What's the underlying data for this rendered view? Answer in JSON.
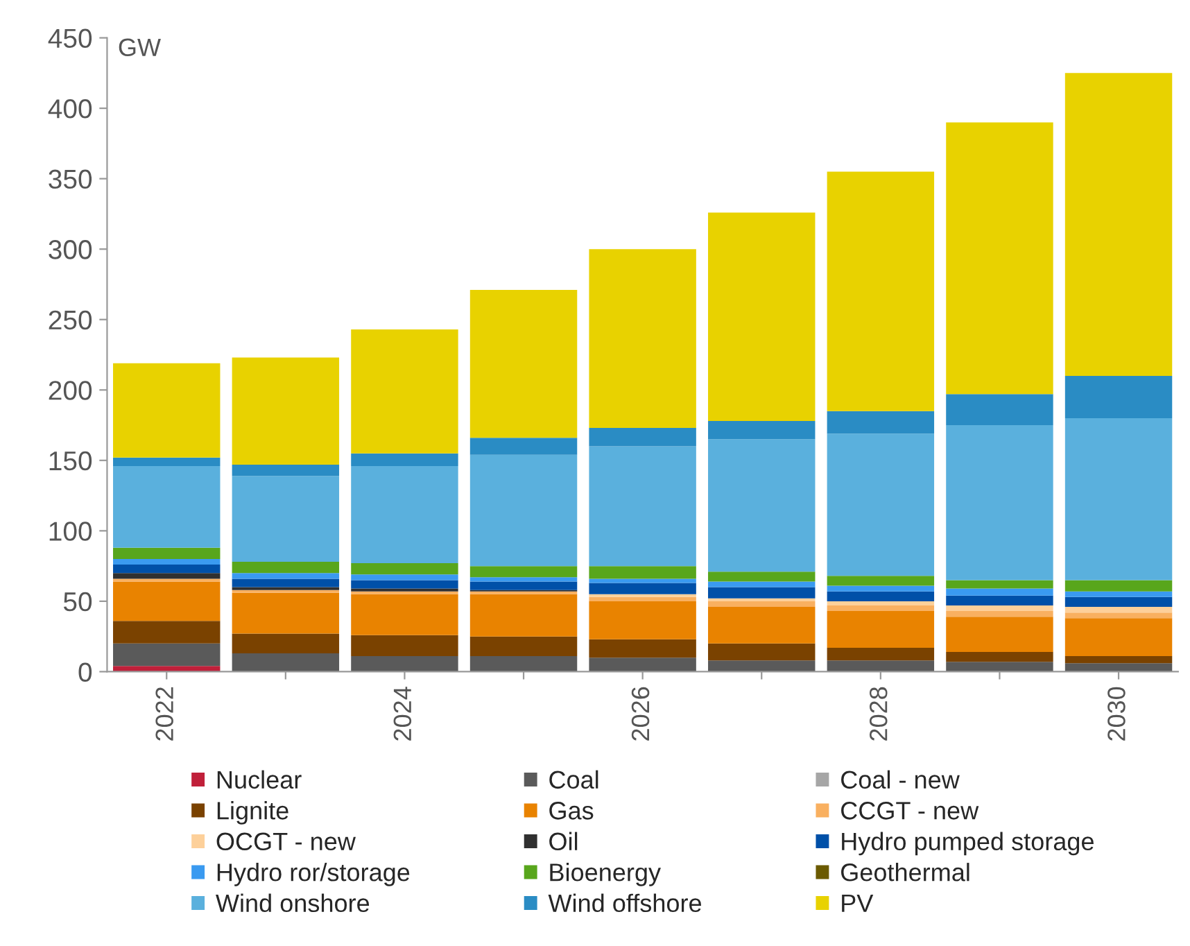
{
  "chart_data": {
    "type": "bar",
    "stacked": true,
    "ylabel": "GW",
    "categories": [
      "2022",
      null,
      "2024",
      null,
      "2026",
      null,
      "2028",
      null,
      "2030"
    ],
    "ylim": [
      0,
      450
    ],
    "yticks": [
      0,
      50,
      100,
      150,
      200,
      250,
      300,
      350,
      400,
      450
    ],
    "grid": false,
    "legend": "bottom",
    "series": [
      {
        "name": "Nuclear",
        "color": "#c0203a",
        "values": [
          4,
          0,
          0,
          0,
          0,
          0,
          0,
          0,
          0
        ]
      },
      {
        "name": "Coal",
        "color": "#5a5a5a",
        "values": [
          16,
          13,
          11,
          11,
          10,
          8,
          8,
          7,
          6
        ]
      },
      {
        "name": "Coal - new",
        "color": "#a6a6a6",
        "values": [
          0,
          0,
          0,
          0,
          0,
          0,
          0,
          0,
          0
        ]
      },
      {
        "name": "Lignite",
        "color": "#7a4200",
        "values": [
          16,
          14,
          15,
          14,
          13,
          12,
          9,
          7,
          5
        ]
      },
      {
        "name": "Gas",
        "color": "#e98300",
        "values": [
          28,
          29,
          29,
          30,
          27,
          26,
          26,
          25,
          27
        ]
      },
      {
        "name": "CCGT - new",
        "color": "#f9b060",
        "values": [
          2,
          2,
          2,
          2,
          3,
          4,
          4,
          4,
          4
        ]
      },
      {
        "name": "OCGT - new",
        "color": "#fdd09a",
        "values": [
          0,
          0,
          0,
          0,
          2,
          2,
          3,
          4,
          4
        ]
      },
      {
        "name": "Oil",
        "color": "#303030",
        "values": [
          4,
          2,
          2,
          1,
          0,
          0,
          0,
          0,
          0
        ]
      },
      {
        "name": "Hydro pumped storage",
        "color": "#0050a8",
        "values": [
          6,
          6,
          6,
          6,
          8,
          8,
          7,
          7,
          7
        ]
      },
      {
        "name": "Hydro ror/storage",
        "color": "#3a9af0",
        "values": [
          4,
          4,
          4,
          3,
          3,
          4,
          4,
          5,
          4
        ]
      },
      {
        "name": "Bioenergy",
        "color": "#58a61c",
        "values": [
          8,
          8,
          8,
          8,
          9,
          7,
          7,
          6,
          8
        ]
      },
      {
        "name": "Geothermal",
        "color": "#6b5a00",
        "values": [
          0,
          0,
          0,
          0,
          0,
          0,
          0,
          0,
          0
        ]
      },
      {
        "name": "Wind onshore",
        "color": "#5ab0dd",
        "values": [
          58,
          61,
          69,
          79,
          85,
          94,
          101,
          110,
          115
        ]
      },
      {
        "name": "Wind offshore",
        "color": "#2a8cc4",
        "values": [
          6,
          8,
          9,
          12,
          13,
          13,
          16,
          22,
          30
        ]
      },
      {
        "name": "PV",
        "color": "#e8d200",
        "values": [
          67,
          76,
          88,
          105,
          127,
          148,
          170,
          193,
          215
        ]
      }
    ]
  }
}
